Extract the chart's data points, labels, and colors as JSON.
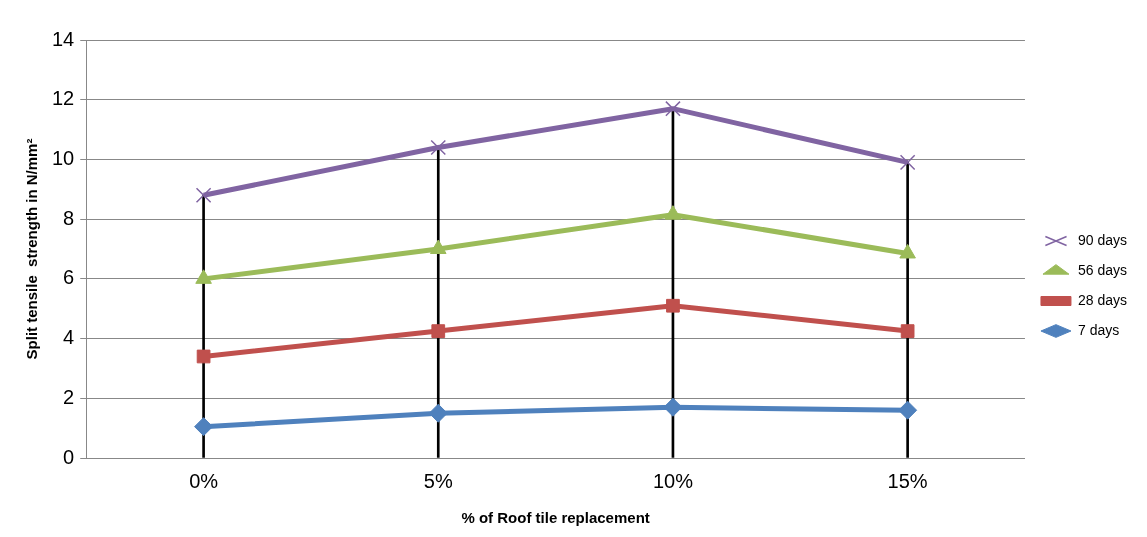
{
  "chart_data": {
    "type": "line",
    "xlabel": "% of Roof tile replacement",
    "ylabel": "Split tensile  strength in N/mm²",
    "categories": [
      "0%",
      "5%",
      "10%",
      "15%"
    ],
    "ylim": [
      0,
      14
    ],
    "yticks": [
      0,
      2,
      4,
      6,
      8,
      10,
      12,
      14
    ],
    "grid": "y",
    "legend": "right",
    "line_style": "solid",
    "series": [
      {
        "name": "90 days",
        "color": "#8064a2",
        "marker": "cross",
        "values": [
          8.8,
          10.4,
          11.7,
          9.9
        ]
      },
      {
        "name": "56 days",
        "color": "#9bbb59",
        "marker": "triangle",
        "values": [
          6.0,
          7.0,
          8.15,
          6.85
        ]
      },
      {
        "name": "28 days",
        "color": "#c0504d",
        "marker": "square",
        "values": [
          3.4,
          4.25,
          5.1,
          4.25
        ]
      },
      {
        "name": "7 days",
        "color": "#4f81bd",
        "marker": "diamond",
        "values": [
          1.05,
          1.5,
          1.7,
          1.6
        ]
      },
      {
        "type": "bar",
        "color": "#000000",
        "values": [
          8.8,
          10.4,
          11.7,
          9.9
        ]
      }
    ]
  }
}
